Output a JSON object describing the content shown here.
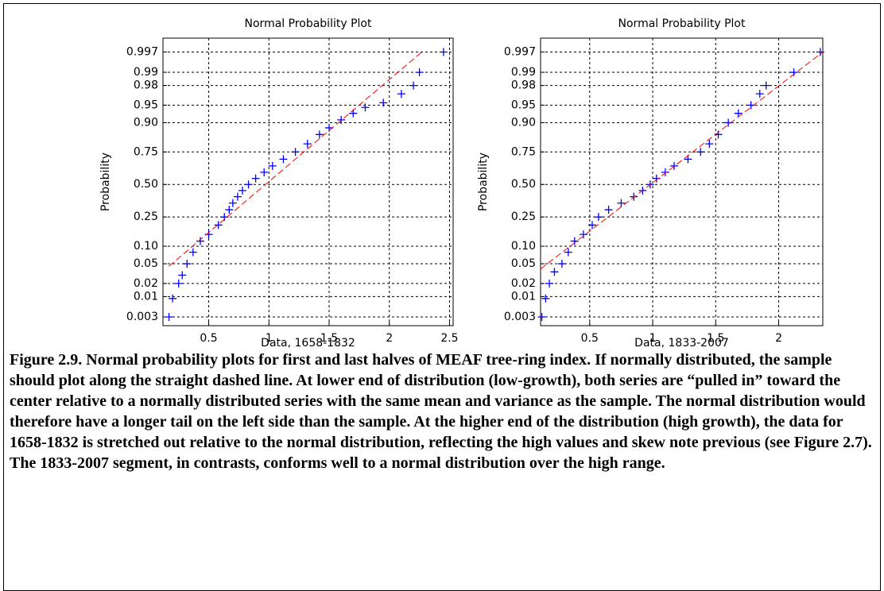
{
  "chart_data": [
    {
      "type": "scatter",
      "title": "Normal Probability Plot",
      "xlabel": "Data, 1658-1832",
      "ylabel": "Probability",
      "xlim": [
        0.12,
        2.53
      ],
      "ylim": [
        0.0017,
        0.9988
      ],
      "yscale": "probability",
      "grid": true,
      "xticks": [
        0.5,
        1,
        1.5,
        2,
        2.5
      ],
      "yticks": [
        0.003,
        0.01,
        0.02,
        0.05,
        {
          "value": 0.1,
          "label": "0.10"
        },
        0.25,
        {
          "value": 0.5,
          "label": "0.50"
        },
        0.75,
        {
          "value": 0.9,
          "label": "0.90"
        },
        0.95,
        0.98,
        0.99,
        0.997
      ],
      "series": [
        {
          "color": "#0000ff",
          "marker": "+",
          "x": [
            0.17,
            0.2,
            0.25,
            0.28,
            0.32,
            0.37,
            0.43,
            0.5,
            0.58,
            0.63,
            0.67,
            0.7,
            0.74,
            0.78,
            0.83,
            0.89,
            0.96,
            1.03,
            1.12,
            1.22,
            1.32,
            1.42,
            1.5,
            1.6,
            1.7,
            1.8,
            1.95,
            2.1,
            2.2,
            2.25,
            2.45
          ],
          "values": [
            0.003,
            0.009,
            0.02,
            0.03,
            0.05,
            0.08,
            0.12,
            0.15,
            0.2,
            0.25,
            0.3,
            0.35,
            0.4,
            0.45,
            0.5,
            0.55,
            0.6,
            0.65,
            0.7,
            0.75,
            0.8,
            0.85,
            0.88,
            0.91,
            0.93,
            0.945,
            0.955,
            0.97,
            0.98,
            0.99,
            0.997
          ]
        },
        {
          "color": "#ff0000",
          "style": "dashed",
          "x": [
            0.17,
            2.27
          ],
          "values": [
            0.045,
            0.997
          ]
        }
      ]
    },
    {
      "type": "scatter",
      "title": "Normal Probability Plot",
      "xlabel": "Data, 1833-2007",
      "ylabel": "Probability",
      "xlim": [
        0.11,
        2.35
      ],
      "ylim": [
        0.0017,
        0.9988
      ],
      "yscale": "probability",
      "grid": true,
      "xticks": [
        0.5,
        1,
        1.5,
        2
      ],
      "yticks": [
        0.003,
        0.01,
        0.02,
        0.05,
        {
          "value": 0.1,
          "label": "0.10"
        },
        0.25,
        {
          "value": 0.5,
          "label": "0.50"
        },
        0.75,
        {
          "value": 0.9,
          "label": "0.90"
        },
        0.95,
        0.98,
        0.99,
        0.997
      ],
      "series": [
        {
          "color": "#0000ff",
          "marker": "+",
          "x": [
            0.12,
            0.15,
            0.18,
            0.22,
            0.28,
            0.33,
            0.38,
            0.45,
            0.52,
            0.57,
            0.65,
            0.75,
            0.85,
            0.92,
            0.98,
            1.03,
            1.1,
            1.17,
            1.28,
            1.38,
            1.45,
            1.52,
            1.6,
            1.68,
            1.78,
            1.85,
            1.9,
            2.12,
            2.33
          ],
          "values": [
            0.003,
            0.009,
            0.02,
            0.035,
            0.05,
            0.08,
            0.12,
            0.15,
            0.2,
            0.25,
            0.3,
            0.35,
            0.4,
            0.45,
            0.5,
            0.55,
            0.6,
            0.65,
            0.7,
            0.75,
            0.8,
            0.85,
            0.9,
            0.93,
            0.95,
            0.97,
            0.98,
            0.99,
            0.997
          ]
        },
        {
          "color": "#ff0000",
          "style": "dashed",
          "x": [
            0.11,
            2.35
          ],
          "values": [
            0.04,
            0.997
          ]
        }
      ]
    }
  ],
  "caption": "Figure 2.9.  Normal probability plots for first and last halves of MEAF tree-ring index. If normally distributed, the sample should plot along the straight dashed line. At lower end of distribution (low-growth), both series are “pulled in” toward the center relative to a normally distributed series with the same mean and variance as the sample. The normal distribution would therefore have a longer tail on the left side than the sample.  At the higher end of the distribution (high growth), the data for 1658-1832 is stretched out relative to the normal distribution, reflecting the high values and skew note previous (see Figure 2.7).  The 1833-2007 segment, in contrasts, conforms well to a normal distribution over the high range."
}
